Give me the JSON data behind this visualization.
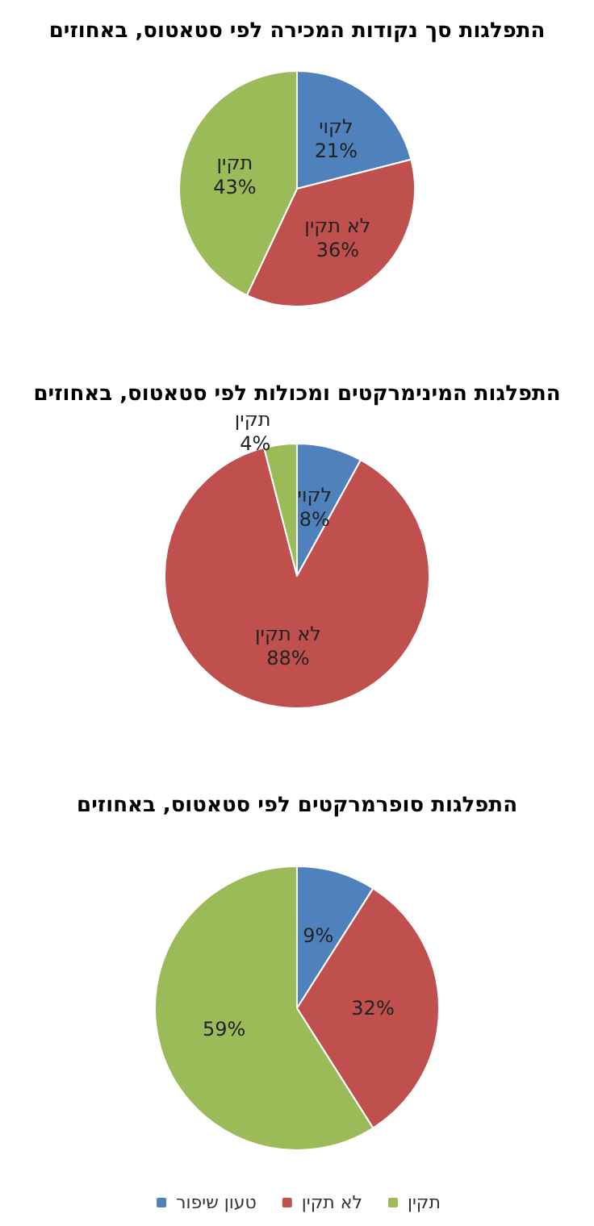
{
  "chart_data": [
    {
      "type": "pie",
      "title": "התפלגות סך נקודות המכירה לפי סטאטוס, באחוזים",
      "categories": [
        "לקוי",
        "לא תקין",
        "תקין"
      ],
      "values": [
        21,
        36,
        43
      ],
      "colors": [
        "#4f81bd",
        "#c0504d",
        "#9bbb59"
      ],
      "value_labels": [
        "21%",
        "36%",
        "43%"
      ],
      "legend": false
    },
    {
      "type": "pie",
      "title": "התפלגות המינימרקטים ומכולות לפי סטאטוס, באחוזים",
      "categories": [
        "לקוי",
        "לא תקין",
        "תקין"
      ],
      "values": [
        8,
        88,
        4
      ],
      "colors": [
        "#4f81bd",
        "#c0504d",
        "#9bbb59"
      ],
      "value_labels": [
        "8%",
        "88%",
        "4%"
      ],
      "legend": false
    },
    {
      "type": "pie",
      "title": "התפלגות סופרמרקטים לפי סטאטוס, באחוזים",
      "categories": [
        "טעון שיפור",
        "לא תקין",
        "תקין"
      ],
      "values": [
        9,
        32,
        59
      ],
      "colors": [
        "#4f81bd",
        "#c0504d",
        "#9bbb59"
      ],
      "value_labels": [
        "9%",
        "32%",
        "59%"
      ],
      "legend": "bottom"
    }
  ]
}
